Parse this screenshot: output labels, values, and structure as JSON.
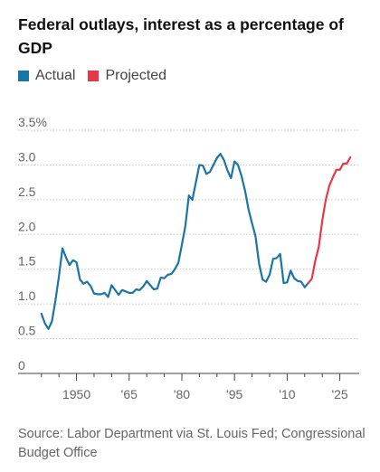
{
  "title": "Federal outlays, interest as a percentage of GDP",
  "source": "Source: Labor Department via St. Louis Fed; Congressional Budget Office",
  "chart_data": {
    "type": "line",
    "title": "Federal outlays, interest as a percentage of GDP",
    "xlabel": "",
    "ylabel": "",
    "xlim": [
      1938,
      2030
    ],
    "ylim": [
      0,
      3.5
    ],
    "y_ticks": [
      0,
      0.5,
      1.0,
      1.5,
      2.0,
      2.5,
      3.0,
      3.5
    ],
    "y_tick_labels": [
      "0",
      "0.5",
      "1.0",
      "1.5",
      "2.0",
      "2.5",
      "3.0",
      "3.5%"
    ],
    "x_ticks": [
      1950,
      1965,
      1980,
      1995,
      2010,
      2025
    ],
    "x_tick_labels": [
      "1950",
      "'65",
      "'80",
      "'95",
      "'10",
      "'25"
    ],
    "grid": "horizontal",
    "legend_position": "top-left",
    "series": [
      {
        "name": "Actual",
        "color": "#1a75a6",
        "x": [
          1940,
          1941,
          1942,
          1943,
          1944,
          1945,
          1946,
          1947,
          1948,
          1949,
          1950,
          1951,
          1952,
          1953,
          1954,
          1955,
          1956,
          1957,
          1958,
          1959,
          1960,
          1961,
          1962,
          1963,
          1964,
          1965,
          1966,
          1967,
          1968,
          1969,
          1970,
          1971,
          1972,
          1973,
          1974,
          1975,
          1976,
          1977,
          1978,
          1979,
          1980,
          1981,
          1982,
          1983,
          1984,
          1985,
          1986,
          1987,
          1988,
          1989,
          1990,
          1991,
          1992,
          1993,
          1994,
          1995,
          1996,
          1997,
          1998,
          1999,
          2000,
          2001,
          2002,
          2003,
          2004,
          2005,
          2006,
          2007,
          2008,
          2009,
          2010,
          2011,
          2012,
          2013,
          2014,
          2015,
          2016
        ],
        "values": [
          0.86,
          0.72,
          0.64,
          0.75,
          1.05,
          1.4,
          1.8,
          1.67,
          1.56,
          1.63,
          1.6,
          1.35,
          1.29,
          1.32,
          1.26,
          1.15,
          1.14,
          1.14,
          1.16,
          1.1,
          1.27,
          1.2,
          1.13,
          1.2,
          1.18,
          1.16,
          1.16,
          1.21,
          1.2,
          1.25,
          1.33,
          1.27,
          1.21,
          1.22,
          1.38,
          1.37,
          1.42,
          1.43,
          1.5,
          1.59,
          1.85,
          2.12,
          2.56,
          2.5,
          2.75,
          3.0,
          2.99,
          2.87,
          2.9,
          3.0,
          3.1,
          3.16,
          3.07,
          2.92,
          2.81,
          3.05,
          3.0,
          2.84,
          2.63,
          2.36,
          2.16,
          1.97,
          1.58,
          1.35,
          1.32,
          1.42,
          1.65,
          1.66,
          1.72,
          1.3,
          1.31,
          1.48,
          1.37,
          1.33,
          1.32,
          1.24,
          1.3
        ]
      },
      {
        "name": "Projected",
        "color": "#e63946",
        "x": [
          2016,
          2017,
          2018,
          2019,
          2020,
          2021,
          2022,
          2023,
          2024,
          2025,
          2026,
          2027,
          2028
        ],
        "values": [
          1.3,
          1.36,
          1.62,
          1.82,
          2.2,
          2.5,
          2.7,
          2.82,
          2.93,
          2.93,
          3.02,
          3.02,
          3.11
        ]
      }
    ]
  }
}
